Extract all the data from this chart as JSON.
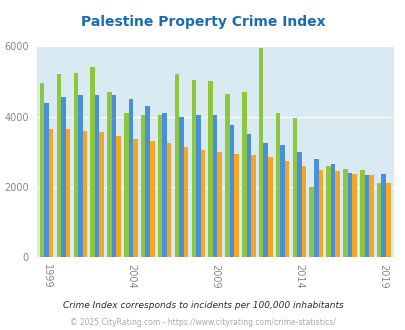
{
  "years": [
    1999,
    2000,
    2001,
    2002,
    2003,
    2004,
    2005,
    2006,
    2007,
    2008,
    2009,
    2010,
    2011,
    2012,
    2013,
    2014,
    2015,
    2016,
    2017,
    2018,
    2019
  ],
  "palestine": [
    4950,
    5200,
    5250,
    5400,
    4700,
    4100,
    4050,
    4050,
    5200,
    5050,
    5000,
    4650,
    4700,
    5950,
    4100,
    3950,
    2000,
    2600,
    2500,
    2480,
    2100
  ],
  "texas": [
    4400,
    4550,
    4600,
    4600,
    4600,
    4500,
    4300,
    4100,
    4000,
    4050,
    4050,
    3750,
    3500,
    3250,
    3200,
    3000,
    2800,
    2650,
    2400,
    2350,
    2380
  ],
  "national": [
    3650,
    3650,
    3600,
    3550,
    3450,
    3350,
    3300,
    3250,
    3150,
    3050,
    3000,
    2950,
    2900,
    2850,
    2750,
    2600,
    2480,
    2450,
    2360,
    2330,
    2100
  ],
  "title": "Palestine Property Crime Index",
  "subtitle": "Crime Index corresponds to incidents per 100,000 inhabitants",
  "footer": "© 2025 CityRating.com - https://www.cityrating.com/crime-statistics/",
  "palette": {
    "palestine": "#8dc63f",
    "texas": "#4a90d9",
    "national": "#f5a623"
  },
  "bg_color": "#daeaf2",
  "ylim": [
    0,
    6000
  ],
  "yticks": [
    0,
    2000,
    4000,
    6000
  ],
  "xtick_years": [
    1999,
    2004,
    2009,
    2014,
    2019
  ],
  "title_color": "#1a6cb0",
  "subtitle_color": "#2c2c2c",
  "footer_color": "#aaaaaa",
  "legend_label_color": "#2c2c2c",
  "tick_color": "#888888",
  "bar_width": 0.27
}
